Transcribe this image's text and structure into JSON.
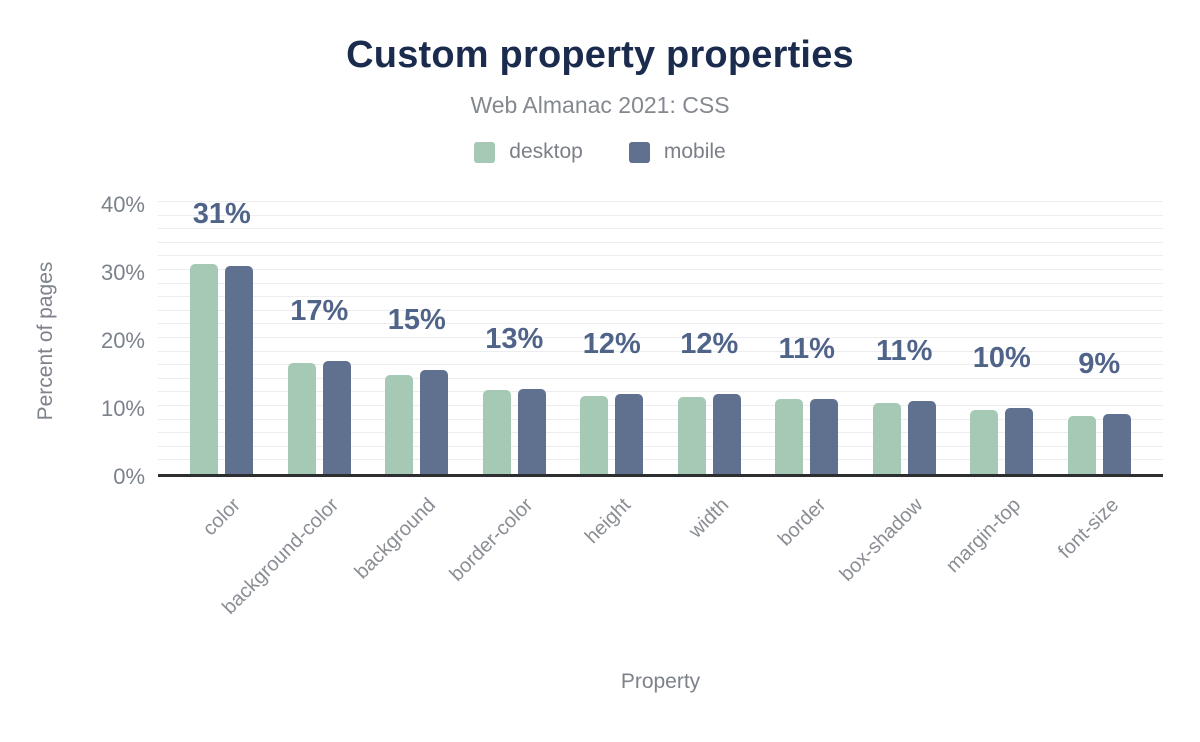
{
  "chart_data": {
    "type": "bar",
    "title": "Custom property properties",
    "subtitle": "Web Almanac 2021: CSS",
    "xlabel": "Property",
    "ylabel": "Percent of pages",
    "categories": [
      "color",
      "background-color",
      "background",
      "border-color",
      "height",
      "width",
      "border",
      "box-shadow",
      "margin-top",
      "font-size"
    ],
    "series": [
      {
        "name": "desktop",
        "color": "#a5c9b4",
        "values": [
          30.9,
          16.3,
          14.5,
          12.4,
          11.5,
          11.3,
          11.1,
          10.5,
          9.4,
          8.5
        ]
      },
      {
        "name": "mobile",
        "color": "#5f718f",
        "values": [
          30.6,
          16.6,
          15.3,
          12.5,
          11.8,
          11.7,
          11.1,
          10.8,
          9.7,
          8.8
        ]
      }
    ],
    "bar_labels": [
      "31%",
      "17%",
      "15%",
      "13%",
      "12%",
      "12%",
      "11%",
      "11%",
      "10%",
      "9%"
    ],
    "yticks": [
      {
        "value": 0,
        "label": "0%"
      },
      {
        "value": 10,
        "label": "10%"
      },
      {
        "value": 20,
        "label": "20%"
      },
      {
        "value": 30,
        "label": "30%"
      },
      {
        "value": 40,
        "label": "40%"
      }
    ],
    "ylim": [
      0,
      40
    ],
    "grid": "horizontal, minor lines every 2%",
    "legend_position": "top-center"
  },
  "colors": {
    "title": "#1b2b4e",
    "subtitle": "#84888f",
    "axis_text": "#7c828c",
    "x_tick_text": "#8a8e94",
    "value_label": "#50648a",
    "gridline": "#ededef",
    "axis_line": "#2d2e30",
    "background": "#ffffff"
  }
}
